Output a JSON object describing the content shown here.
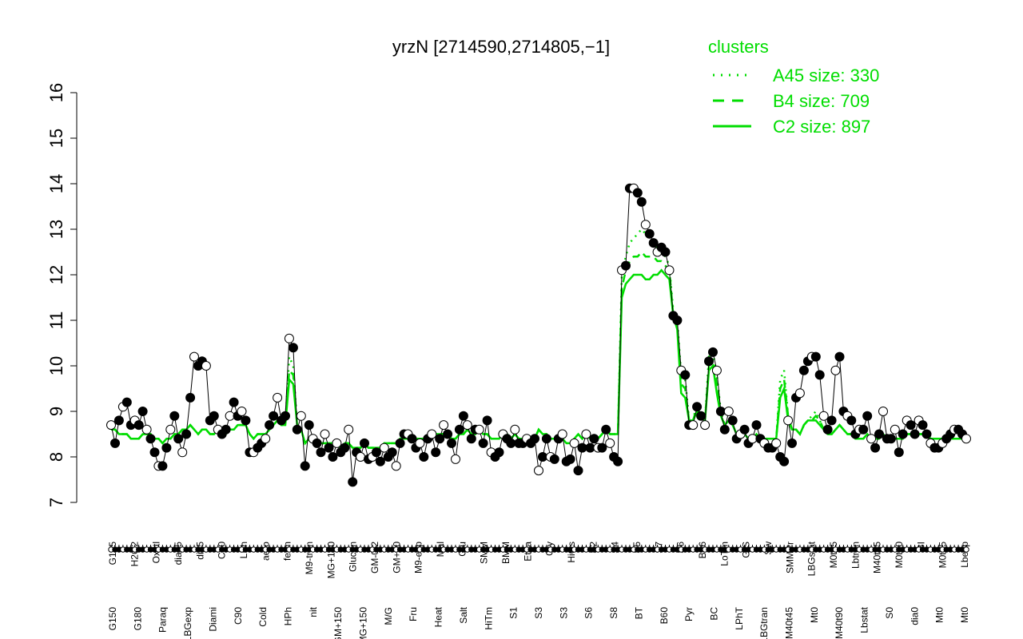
{
  "chart_data": {
    "type": "line",
    "title": "yrzN [2714590,2714805,−1]",
    "xlabel": "",
    "ylabel": "",
    "ylim": [
      7,
      16
    ],
    "yticks": [
      7,
      8,
      9,
      10,
      11,
      12,
      13,
      14,
      15,
      16
    ],
    "grid": false,
    "legend": {
      "title": "clusters",
      "position": "top-right",
      "color": "#00dd00",
      "entries": [
        {
          "label": "A45 size: 330",
          "style": "dotted"
        },
        {
          "label": "B4 size: 709",
          "style": "dashed"
        },
        {
          "label": "C2 size: 897",
          "style": "solid"
        }
      ]
    },
    "x_tick_labels_top": [
      "G135",
      "H2O2",
      "Oxctl",
      "dia15",
      "dia5",
      "C30",
      "LPh",
      "aero",
      "ferm",
      "M9-tran",
      "MG+120",
      "Glucon",
      "GM-0.2",
      "GM+60",
      "M9-exp",
      "Mal",
      "Glu",
      "SMM",
      "BMM",
      "Etha",
      "Gly",
      "HiOs",
      "S2",
      "S4",
      "S5",
      "S7",
      "S6",
      "B36",
      "LoTm",
      "G/S",
      "Sw",
      "SMMPr",
      "LBGstat",
      "M0t45",
      "Lbtran",
      "M40t45",
      "M0t90",
      "BI",
      "M0t45",
      "Lbexp"
    ],
    "x_tick_labels_bottom": [
      "G150",
      "G180",
      "Paraq",
      "LBGexp",
      "Diami",
      "C90",
      "Cold",
      "HPh",
      "nit",
      "GM+150",
      "MG+150",
      "M/G",
      "Fru",
      "Heat",
      "Salt",
      "HiTm",
      "S1",
      "S3",
      "S3",
      "S6",
      "S8",
      "BT",
      "B60",
      "Pyr",
      "BC",
      "LPhT",
      "LBGtran",
      "M40t45",
      "Mt0",
      "M40t90",
      "Lbstat",
      "S0",
      "dia0",
      "Mt0",
      "Mt0"
    ],
    "values": [
      8.7,
      8.3,
      8.8,
      9.1,
      9.2,
      8.7,
      8.8,
      8.7,
      9.0,
      8.6,
      8.4,
      8.1,
      7.8,
      7.8,
      8.2,
      8.6,
      8.9,
      8.4,
      8.1,
      8.5,
      9.3,
      10.2,
      10.0,
      10.1,
      10.0,
      8.8,
      8.9,
      8.6,
      8.5,
      8.6,
      8.9,
      9.2,
      8.9,
      9.0,
      8.8,
      8.1,
      8.1,
      8.2,
      8.3,
      8.4,
      8.7,
      8.9,
      9.3,
      8.8,
      8.9,
      10.6,
      10.4,
      8.6,
      8.9,
      7.8,
      8.7,
      8.4,
      8.3,
      8.1,
      8.5,
      8.2,
      8.0,
      8.3,
      8.1,
      8.2,
      8.6,
      7.45,
      8.1,
      8.0,
      8.3,
      7.95,
      8.0,
      8.1,
      7.9,
      8.2,
      8.0,
      8.1,
      7.8,
      8.3,
      8.5,
      8.5,
      8.4,
      8.2,
      8.3,
      8.0,
      8.4,
      8.5,
      8.1,
      8.4,
      8.7,
      8.5,
      8.3,
      7.95,
      8.6,
      8.9,
      8.7,
      8.4,
      8.6,
      8.6,
      8.3,
      8.8,
      8.1,
      8.0,
      8.1,
      8.5,
      8.4,
      8.3,
      8.6,
      8.3,
      8.3,
      8.4,
      8.3,
      8.4,
      7.7,
      8.0,
      8.4,
      8.0,
      7.95,
      8.4,
      8.5,
      7.9,
      7.95,
      8.3,
      7.7,
      8.2,
      8.5,
      8.2,
      8.4,
      8.2,
      8.2,
      8.6,
      8.3,
      8.0,
      7.9,
      12.1,
      12.2,
      13.9,
      13.9,
      13.8,
      13.6,
      13.1,
      12.9,
      12.7,
      12.5,
      12.6,
      12.5,
      12.1,
      11.1,
      11.0,
      9.9,
      9.8,
      8.7,
      8.7,
      9.1,
      8.9,
      8.7,
      10.1,
      10.3,
      9.9,
      9.0,
      8.6,
      9.0,
      8.8,
      8.4,
      8.5,
      8.6,
      8.3,
      8.4,
      8.7,
      8.4,
      8.3,
      8.2,
      8.2,
      8.3,
      8.0,
      7.9,
      8.8,
      8.3,
      9.3,
      9.4,
      9.9,
      10.1,
      10.2,
      10.2,
      9.8,
      8.9,
      8.6,
      8.8,
      9.9,
      10.2,
      9.0,
      8.9,
      8.8,
      8.5,
      8.6,
      8.6,
      8.9,
      8.4,
      8.2,
      8.5,
      9.0,
      8.4,
      8.4,
      8.6,
      8.1,
      8.5,
      8.8,
      8.7,
      8.5,
      8.8,
      8.7,
      8.5,
      8.3,
      8.2,
      8.2,
      8.3,
      8.4,
      8.5,
      8.6,
      8.6,
      8.5,
      8.4
    ],
    "series": [
      {
        "style": "solid",
        "values": [
          8.6,
          8.6,
          8.5,
          8.5,
          8.5,
          8.4,
          8.4,
          8.4,
          8.5,
          8.5,
          8.5,
          8.4,
          8.4,
          8.3,
          8.4,
          8.4,
          8.5,
          8.5,
          8.6,
          8.6,
          8.7,
          8.6,
          8.5,
          8.6,
          8.6,
          8.5,
          8.5,
          8.6,
          8.5,
          8.5,
          8.6,
          8.6,
          8.7,
          8.7,
          8.7,
          8.5,
          8.4,
          8.5,
          8.5,
          8.5,
          8.6,
          8.7,
          8.8,
          8.7,
          8.7,
          9.7,
          9.6,
          8.7,
          8.6,
          8.3,
          8.4,
          8.4,
          8.3,
          8.3,
          8.3,
          8.3,
          8.3,
          8.3,
          8.2,
          8.3,
          8.3,
          8.2,
          8.2,
          8.2,
          8.3,
          8.2,
          8.2,
          8.2,
          8.2,
          8.3,
          8.3,
          8.3,
          8.3,
          8.4,
          8.4,
          8.4,
          8.4,
          8.4,
          8.4,
          8.4,
          8.4,
          8.4,
          8.5,
          8.5,
          8.5,
          8.5,
          8.4,
          8.4,
          8.5,
          8.5,
          8.6,
          8.5,
          8.5,
          8.6,
          8.5,
          8.5,
          8.4,
          8.4,
          8.4,
          8.5,
          8.5,
          8.4,
          8.5,
          8.4,
          8.4,
          8.4,
          8.4,
          8.4,
          8.6,
          8.5,
          8.5,
          8.4,
          8.4,
          8.4,
          8.4,
          8.3,
          8.3,
          8.4,
          8.5,
          8.4,
          8.5,
          8.4,
          8.4,
          8.4,
          8.5,
          8.6,
          8.5,
          8.5,
          8.5,
          11.5,
          11.8,
          11.9,
          12.0,
          12.0,
          12.0,
          11.9,
          11.9,
          12.0,
          12.0,
          12.1,
          12.0,
          11.9,
          11.1,
          10.8,
          9.4,
          9.3,
          8.8,
          8.8,
          9.0,
          8.9,
          8.8,
          9.9,
          10.0,
          9.4,
          8.9,
          8.7,
          8.8,
          8.7,
          8.5,
          8.5,
          8.5,
          8.4,
          8.4,
          8.5,
          8.4,
          8.4,
          8.4,
          8.4,
          8.4,
          9.3,
          9.5,
          8.8,
          8.6,
          8.6,
          8.5,
          8.7,
          8.8,
          8.8,
          8.8,
          8.7,
          8.6,
          8.5,
          8.5,
          8.6,
          8.7,
          8.6,
          8.5,
          8.5,
          8.4,
          8.4,
          8.4,
          8.5,
          8.4,
          8.4,
          8.4,
          8.5,
          8.4,
          8.4,
          8.4,
          8.4,
          8.4,
          8.5,
          8.5,
          8.5,
          8.5,
          8.5,
          8.5,
          8.4,
          8.4,
          8.4,
          8.4,
          8.4,
          8.4,
          8.4,
          8.4,
          8.4,
          8.4
        ]
      },
      {
        "style": "dashed",
        "values": [
          8.6,
          8.6,
          8.5,
          8.5,
          8.5,
          8.4,
          8.4,
          8.4,
          8.5,
          8.5,
          8.5,
          8.4,
          8.4,
          8.3,
          8.4,
          8.4,
          8.5,
          8.5,
          8.6,
          8.6,
          8.7,
          8.6,
          8.5,
          8.6,
          8.6,
          8.5,
          8.5,
          8.6,
          8.5,
          8.5,
          8.6,
          8.6,
          8.7,
          8.7,
          8.7,
          8.5,
          8.4,
          8.5,
          8.5,
          8.5,
          8.6,
          8.7,
          8.8,
          8.7,
          8.7,
          9.9,
          9.8,
          8.7,
          8.6,
          8.3,
          8.4,
          8.4,
          8.3,
          8.3,
          8.3,
          8.3,
          8.3,
          8.3,
          8.2,
          8.3,
          8.3,
          8.2,
          8.2,
          8.2,
          8.3,
          8.2,
          8.2,
          8.2,
          8.2,
          8.3,
          8.3,
          8.3,
          8.3,
          8.4,
          8.4,
          8.4,
          8.4,
          8.4,
          8.4,
          8.4,
          8.4,
          8.4,
          8.5,
          8.5,
          8.5,
          8.5,
          8.4,
          8.4,
          8.5,
          8.5,
          8.6,
          8.5,
          8.5,
          8.6,
          8.5,
          8.5,
          8.4,
          8.4,
          8.4,
          8.5,
          8.5,
          8.4,
          8.5,
          8.4,
          8.4,
          8.4,
          8.4,
          8.4,
          8.6,
          8.5,
          8.5,
          8.4,
          8.4,
          8.4,
          8.4,
          8.3,
          8.3,
          8.4,
          8.5,
          8.4,
          8.5,
          8.4,
          8.4,
          8.4,
          8.5,
          8.6,
          8.5,
          8.5,
          8.5,
          11.7,
          12.1,
          12.3,
          12.4,
          12.4,
          12.5,
          12.4,
          12.4,
          12.4,
          12.3,
          12.3,
          12.2,
          12.1,
          11.1,
          10.9,
          9.6,
          9.5,
          8.8,
          8.8,
          9.1,
          8.9,
          8.8,
          10.0,
          10.1,
          9.6,
          8.9,
          8.7,
          8.8,
          8.7,
          8.5,
          8.5,
          8.5,
          8.4,
          8.4,
          8.5,
          8.4,
          8.4,
          8.4,
          8.4,
          8.4,
          9.5,
          9.7,
          8.9,
          8.6,
          8.6,
          8.5,
          8.7,
          8.8,
          8.8,
          8.9,
          8.8,
          8.6,
          8.5,
          8.5,
          8.6,
          8.7,
          8.6,
          8.5,
          8.5,
          8.4,
          8.4,
          8.4,
          8.5,
          8.4,
          8.4,
          8.4,
          8.5,
          8.4,
          8.4,
          8.4,
          8.4,
          8.4,
          8.5,
          8.5,
          8.5,
          8.5,
          8.5,
          8.5,
          8.4,
          8.4,
          8.4,
          8.4,
          8.4,
          8.4,
          8.4,
          8.4,
          8.4,
          8.4
        ]
      },
      {
        "style": "dotted",
        "values": [
          8.6,
          8.6,
          8.5,
          8.5,
          8.5,
          8.4,
          8.4,
          8.4,
          8.5,
          8.5,
          8.5,
          8.4,
          8.4,
          8.3,
          8.4,
          8.4,
          8.5,
          8.5,
          8.6,
          8.6,
          8.7,
          8.6,
          8.5,
          8.6,
          8.6,
          8.5,
          8.5,
          8.6,
          8.5,
          8.5,
          8.6,
          8.6,
          8.7,
          8.7,
          8.7,
          8.5,
          8.4,
          8.5,
          8.5,
          8.5,
          8.6,
          8.7,
          8.8,
          8.7,
          8.7,
          10.2,
          10.0,
          8.7,
          8.6,
          8.3,
          8.4,
          8.4,
          8.3,
          8.3,
          8.3,
          8.3,
          8.3,
          8.3,
          8.2,
          8.3,
          8.3,
          8.2,
          8.2,
          8.2,
          8.3,
          8.2,
          8.2,
          8.2,
          8.2,
          8.3,
          8.3,
          8.3,
          8.3,
          8.4,
          8.4,
          8.4,
          8.4,
          8.4,
          8.4,
          8.4,
          8.4,
          8.4,
          8.5,
          8.5,
          8.5,
          8.5,
          8.4,
          8.4,
          8.5,
          8.5,
          8.6,
          8.5,
          8.5,
          8.6,
          8.5,
          8.5,
          8.4,
          8.4,
          8.4,
          8.5,
          8.5,
          8.4,
          8.5,
          8.4,
          8.4,
          8.4,
          8.4,
          8.4,
          8.6,
          8.5,
          8.5,
          8.4,
          8.4,
          8.4,
          8.4,
          8.3,
          8.3,
          8.4,
          8.5,
          8.4,
          8.5,
          8.4,
          8.4,
          8.4,
          8.5,
          8.6,
          8.5,
          8.5,
          8.5,
          12.0,
          12.4,
          12.7,
          12.8,
          12.9,
          13.0,
          12.9,
          12.8,
          12.7,
          12.6,
          12.5,
          12.4,
          12.2,
          11.2,
          11.0,
          9.8,
          9.7,
          8.8,
          8.8,
          9.2,
          9.0,
          8.8,
          10.2,
          10.3,
          9.8,
          9.0,
          8.7,
          8.8,
          8.7,
          8.5,
          8.5,
          8.5,
          8.4,
          8.4,
          8.5,
          8.4,
          8.4,
          8.4,
          8.4,
          8.4,
          9.7,
          9.9,
          8.9,
          8.6,
          8.6,
          8.5,
          8.7,
          8.8,
          8.9,
          9.0,
          8.8,
          8.6,
          8.5,
          8.5,
          8.6,
          8.7,
          8.6,
          8.5,
          8.5,
          8.4,
          8.4,
          8.4,
          8.5,
          8.4,
          8.4,
          8.4,
          8.5,
          8.4,
          8.4,
          8.4,
          8.4,
          8.4,
          8.5,
          8.5,
          8.5,
          8.5,
          8.5,
          8.5,
          8.4,
          8.4,
          8.4,
          8.4,
          8.4,
          8.4,
          8.4,
          8.4,
          8.4,
          8.4
        ]
      }
    ]
  }
}
